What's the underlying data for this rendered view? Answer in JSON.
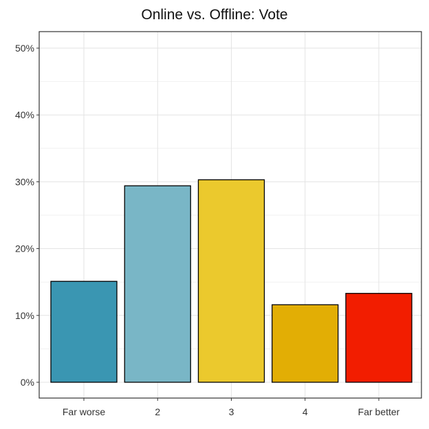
{
  "chart_data": {
    "type": "bar",
    "title": "Online vs. Offline: Vote",
    "xlabel": "",
    "ylabel": "",
    "categories": [
      "Far worse",
      "2",
      "3",
      "4",
      "Far better"
    ],
    "values": [
      15.1,
      29.4,
      30.3,
      11.6,
      13.3
    ],
    "colors": [
      "#3a96b2",
      "#79b6c6",
      "#ebc92d",
      "#e2ae05",
      "#f21d00"
    ],
    "ylim": [
      0,
      50
    ],
    "yticks": [
      0,
      10,
      20,
      30,
      40,
      50
    ],
    "ytick_labels": [
      "0%",
      "10%",
      "20%",
      "30%",
      "40%",
      "50%"
    ],
    "grid": true,
    "legend": "none"
  }
}
